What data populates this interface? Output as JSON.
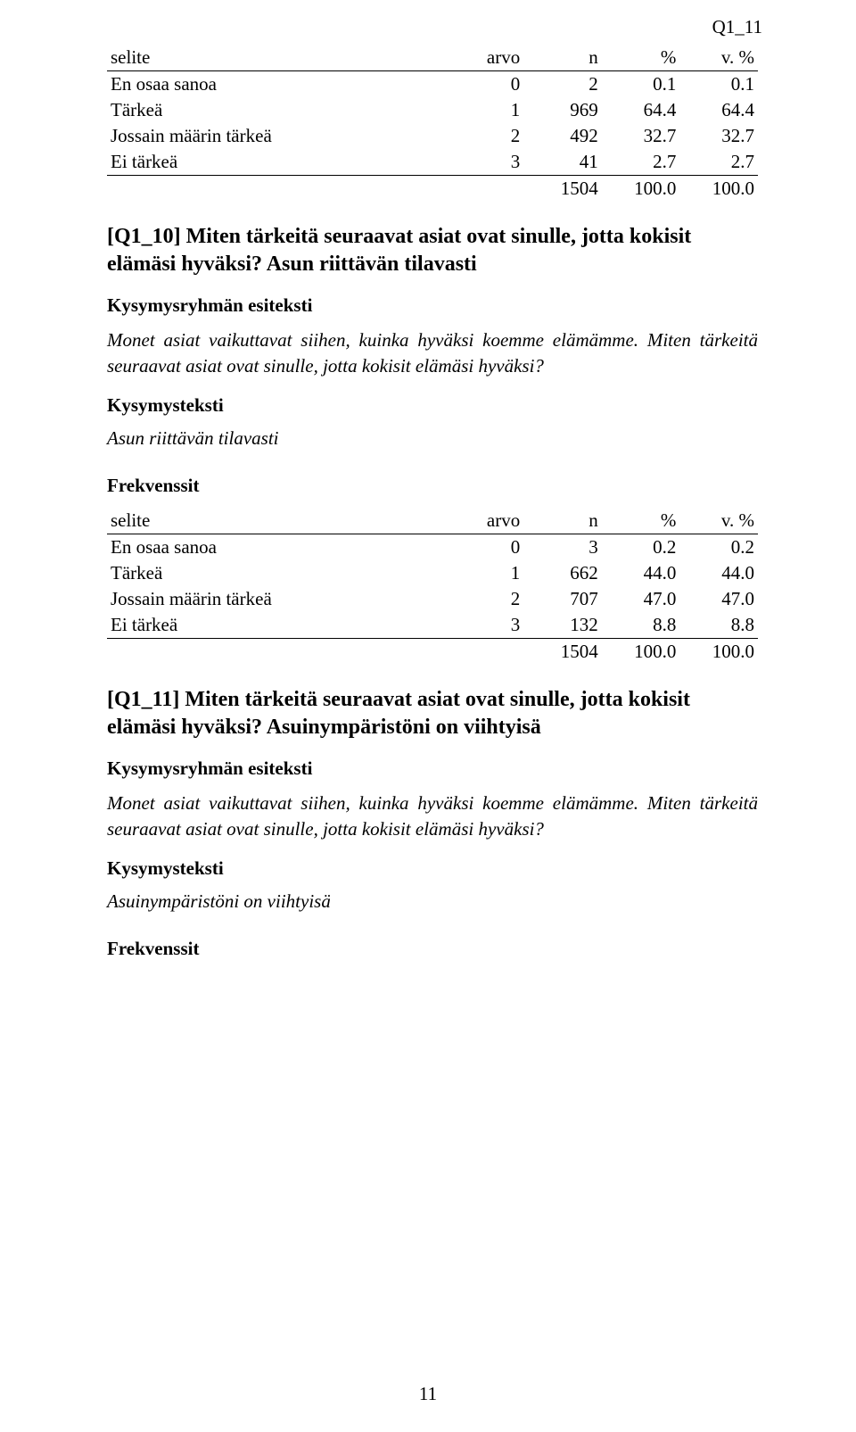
{
  "header_label": "Q1_11",
  "table1": {
    "columns": [
      "selite",
      "arvo",
      "n",
      "%",
      "v. %"
    ],
    "rows": [
      [
        "En osaa sanoa",
        "0",
        "2",
        "0.1",
        "0.1"
      ],
      [
        "Tärkeä",
        "1",
        "969",
        "64.4",
        "64.4"
      ],
      [
        "Jossain määrin tärkeä",
        "2",
        "492",
        "32.7",
        "32.7"
      ],
      [
        "Ei tärkeä",
        "3",
        "41",
        "2.7",
        "2.7"
      ]
    ],
    "total": [
      "",
      "",
      "1504",
      "100.0",
      "100.0"
    ]
  },
  "section_q1_10": {
    "heading": "[Q1_10] Miten tärkeitä seuraavat asiat ovat sinulle, jotta kokisit elämäsi hyväksi? Asun riittävän tilavasti",
    "group_label": "Kysymysryhmän esiteksti",
    "group_text": "Monet asiat vaikuttavat siihen, kuinka hyväksi koemme elämämme. Miten tärkeitä seuraavat asiat ovat sinulle, jotta kokisit elämäsi hyväksi?",
    "q_label": "Kysymysteksti",
    "q_text": "Asun riittävän tilavasti",
    "freq_label": "Frekvenssit"
  },
  "table2": {
    "columns": [
      "selite",
      "arvo",
      "n",
      "%",
      "v. %"
    ],
    "rows": [
      [
        "En osaa sanoa",
        "0",
        "3",
        "0.2",
        "0.2"
      ],
      [
        "Tärkeä",
        "1",
        "662",
        "44.0",
        "44.0"
      ],
      [
        "Jossain määrin tärkeä",
        "2",
        "707",
        "47.0",
        "47.0"
      ],
      [
        "Ei tärkeä",
        "3",
        "132",
        "8.8",
        "8.8"
      ]
    ],
    "total": [
      "",
      "",
      "1504",
      "100.0",
      "100.0"
    ]
  },
  "section_q1_11": {
    "heading": "[Q1_11] Miten tärkeitä seuraavat asiat ovat sinulle, jotta kokisit elämäsi hyväksi? Asuinympäristöni on viihtyisä",
    "group_label": "Kysymysryhmän esiteksti",
    "group_text": "Monet asiat vaikuttavat siihen, kuinka hyväksi koemme elämämme. Miten tärkeitä seuraavat asiat ovat sinulle, jotta kokisit elämäsi hyväksi?",
    "q_label": "Kysymysteksti",
    "q_text": "Asuinympäristöni on viihtyisä",
    "freq_label": "Frekvenssit"
  },
  "page_number": "11"
}
